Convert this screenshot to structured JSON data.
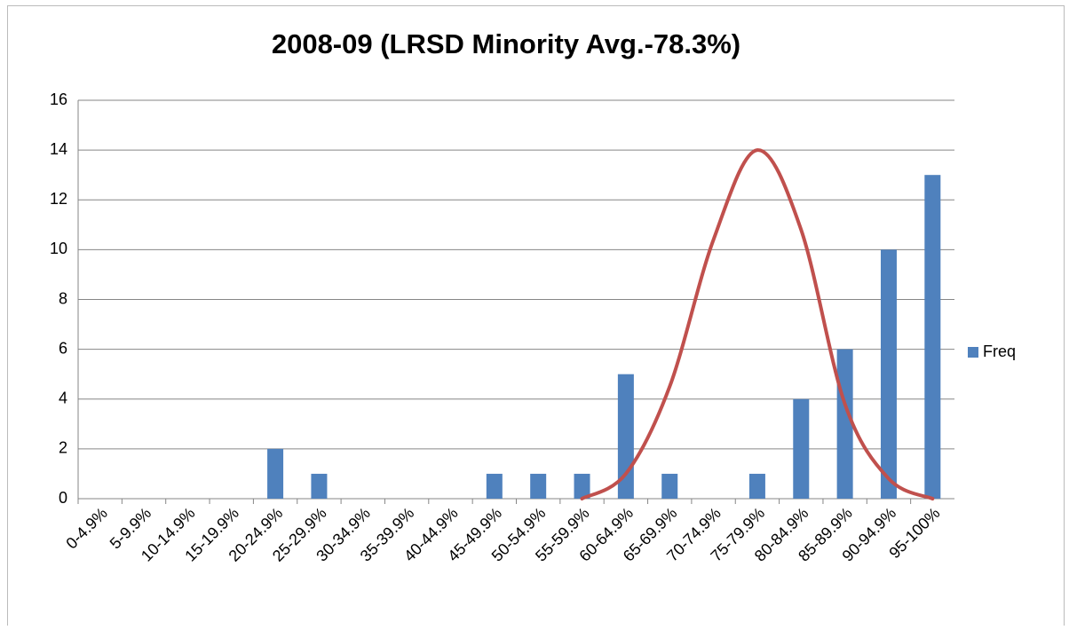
{
  "chart_data": {
    "type": "bar",
    "title": "2008-09 (LRSD Minority Avg.-78.3%)",
    "categories": [
      "0-4.9%",
      "5-9.9%",
      "10-14.9%",
      "15-19.9%",
      "20-24.9%",
      "25-29.9%",
      "30-34.9%",
      "35-39.9%",
      "40-44.9%",
      "45-49.9%",
      "50-54.9%",
      "55-59.9%",
      "60-64.9%",
      "65-69.9%",
      "70-74.9%",
      "75-79.9%",
      "80-84.9%",
      "85-89.9%",
      "90-94.9%",
      "95-100%"
    ],
    "series": [
      {
        "name": "Freq",
        "type": "bar",
        "color": "#4f81bd",
        "values": [
          0,
          0,
          0,
          0,
          2,
          1,
          0,
          0,
          0,
          1,
          1,
          1,
          5,
          1,
          0,
          1,
          4,
          6,
          10,
          13
        ]
      },
      {
        "type": "line",
        "color": "#c0504d",
        "values": [
          null,
          null,
          null,
          null,
          null,
          null,
          null,
          null,
          null,
          null,
          null,
          0,
          1,
          4.5,
          10.4,
          14,
          10.8,
          3.8,
          0.8,
          0
        ]
      }
    ],
    "ylim": [
      0,
      16
    ],
    "yticks": [
      0,
      2,
      4,
      6,
      8,
      10,
      12,
      14,
      16
    ],
    "grid": true,
    "legend": "right"
  }
}
